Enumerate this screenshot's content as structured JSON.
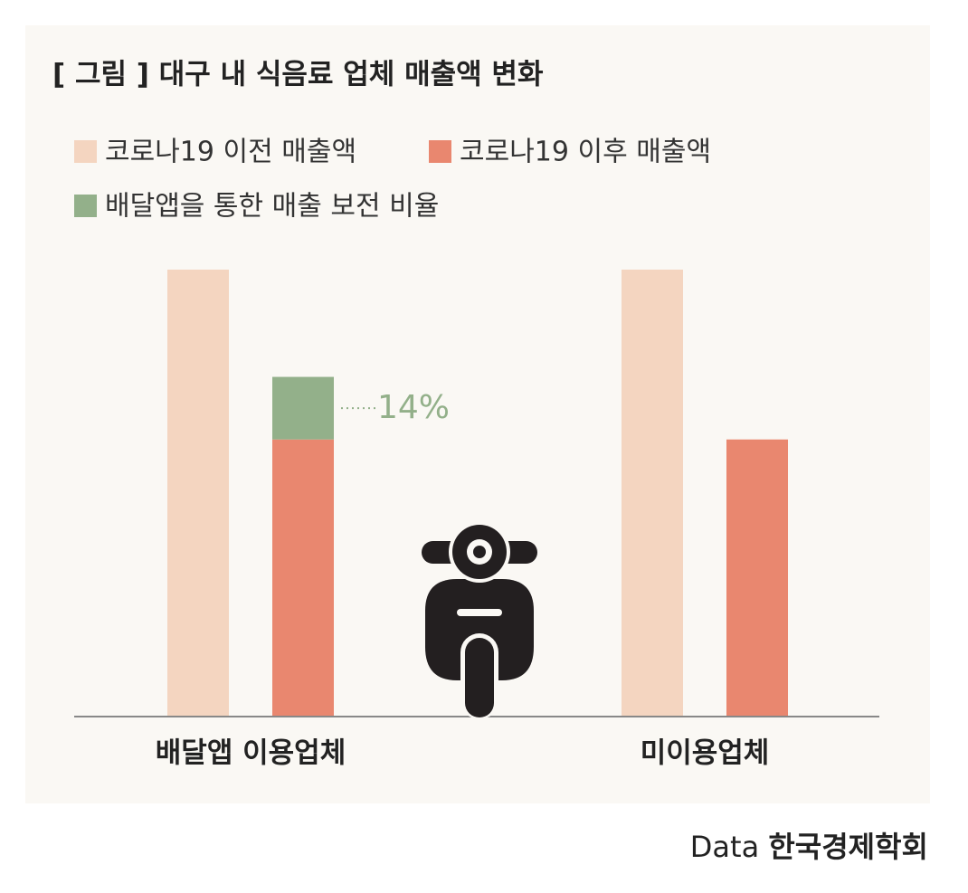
{
  "chart_data": {
    "type": "bar",
    "title": "[ 그림 ] 대구 내 식음료 업체 매출액 변화",
    "categories": [
      "배달앱 이용업체",
      "미이용업체"
    ],
    "series": [
      {
        "name": "코로나19 이전 매출액",
        "color": "#f4d5c0",
        "stack": "before",
        "values": [
          100,
          100
        ]
      },
      {
        "name": "코로나19 이후 매출액",
        "color": "#e9876f",
        "stack": "after",
        "values": [
          62,
          62
        ]
      },
      {
        "name": "배달앱을 통한 매출 보전 비율",
        "color": "#93b08a",
        "stack": "after",
        "values": [
          14,
          null
        ],
        "value_labels": [
          "14%",
          null
        ]
      }
    ],
    "ylim": [
      0,
      100
    ],
    "source_label": "Data",
    "source": "한국경제학회"
  }
}
